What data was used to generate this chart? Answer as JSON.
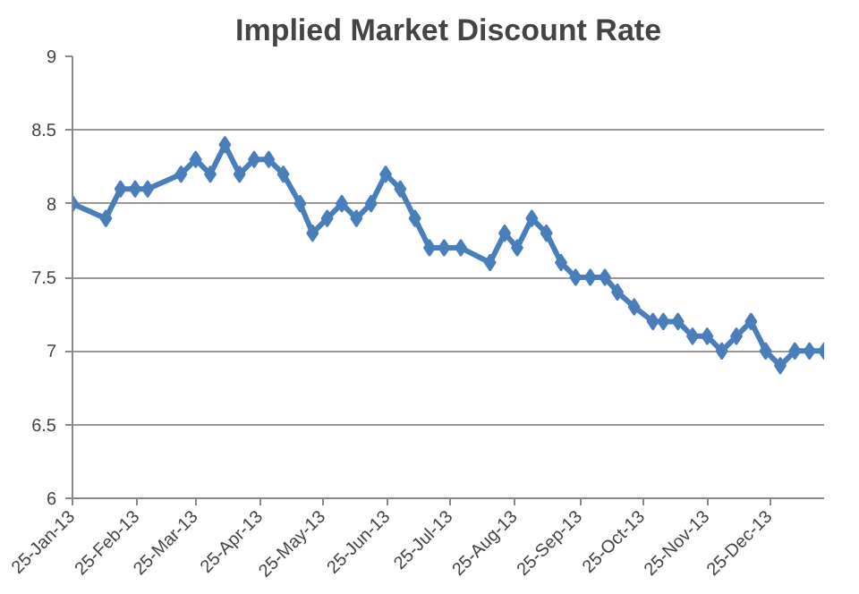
{
  "chart_data": {
    "type": "line",
    "title": "Implied Market Discount Rate",
    "x": [
      "2013-01-25",
      "2013-02-10",
      "2013-02-17",
      "2013-02-24",
      "2013-03-02",
      "2013-03-18",
      "2013-03-25",
      "2013-04-01",
      "2013-04-08",
      "2013-04-15",
      "2013-04-22",
      "2013-04-29",
      "2013-05-06",
      "2013-05-14",
      "2013-05-20",
      "2013-05-27",
      "2013-06-03",
      "2013-06-10",
      "2013-06-17",
      "2013-06-24",
      "2013-07-01",
      "2013-07-08",
      "2013-07-15",
      "2013-07-22",
      "2013-07-30",
      "2013-08-13",
      "2013-08-20",
      "2013-08-26",
      "2013-09-02",
      "2013-09-09",
      "2013-09-16",
      "2013-09-23",
      "2013-09-30",
      "2013-10-07",
      "2013-10-13",
      "2013-10-21",
      "2013-10-30",
      "2013-11-04",
      "2013-11-11",
      "2013-11-18",
      "2013-11-25",
      "2013-12-02",
      "2013-12-09",
      "2013-12-16",
      "2013-12-23",
      "2013-12-30",
      "2014-01-06",
      "2014-01-13",
      "2014-01-20"
    ],
    "series": [
      {
        "color": "#4a7ebb",
        "values": [
          8.0,
          7.9,
          8.1,
          8.1,
          8.1,
          8.2,
          8.3,
          8.2,
          8.4,
          8.2,
          8.3,
          8.3,
          8.2,
          8.0,
          7.8,
          7.9,
          8.0,
          7.9,
          8.0,
          8.2,
          8.1,
          7.9,
          7.7,
          7.7,
          7.7,
          7.6,
          7.8,
          7.7,
          7.9,
          7.8,
          7.6,
          7.5,
          7.5,
          7.5,
          7.4,
          7.3,
          7.2,
          7.2,
          7.2,
          7.1,
          7.1,
          7.0,
          7.1,
          7.2,
          7.0,
          6.9,
          7.0,
          7.0,
          7.0
        ]
      }
    ],
    "xlim": [
      "2013-01-25",
      "2014-01-20"
    ],
    "xticks": [
      {
        "value": "2013-01-25",
        "label": "25-Jan-13"
      },
      {
        "value": "2013-02-25",
        "label": "25-Feb-13"
      },
      {
        "value": "2013-03-25",
        "label": "25-Mar-13"
      },
      {
        "value": "2013-04-25",
        "label": "25-Apr-13"
      },
      {
        "value": "2013-05-25",
        "label": "25-May-13"
      },
      {
        "value": "2013-06-25",
        "label": "25-Jun-13"
      },
      {
        "value": "2013-07-25",
        "label": "25-Jul-13"
      },
      {
        "value": "2013-08-25",
        "label": "25-Aug-13"
      },
      {
        "value": "2013-09-25",
        "label": "25-Sep-13"
      },
      {
        "value": "2013-10-25",
        "label": "25-Oct-13"
      },
      {
        "value": "2013-11-25",
        "label": "25-Nov-13"
      },
      {
        "value": "2013-12-25",
        "label": "25-Dec-13"
      }
    ],
    "ylim": [
      6,
      9
    ],
    "yticks": [
      6,
      6.5,
      7,
      7.5,
      8,
      8.5,
      9
    ],
    "grid": "y",
    "marker": "diamond",
    "line_style": "solid"
  }
}
